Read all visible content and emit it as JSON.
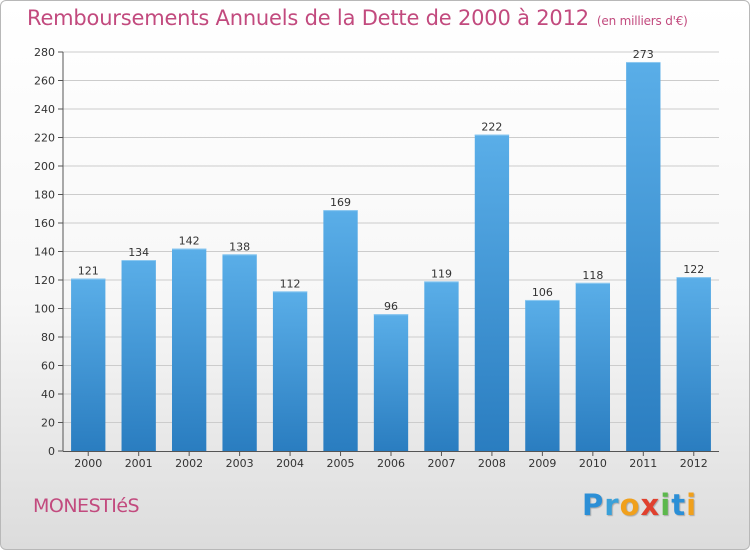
{
  "chart_data": {
    "type": "bar",
    "title": "Remboursements Annuels de la Dette de 2000 à 2012",
    "subtitle": "(en milliers d'€)",
    "categories": [
      "2000",
      "2001",
      "2002",
      "2003",
      "2004",
      "2005",
      "2006",
      "2007",
      "2008",
      "2009",
      "2010",
      "2011",
      "2012"
    ],
    "values": [
      121,
      134,
      142,
      138,
      112,
      169,
      96,
      119,
      222,
      106,
      118,
      273,
      122
    ],
    "ylim": [
      0,
      280
    ],
    "yticks": [
      0,
      20,
      40,
      60,
      80,
      100,
      120,
      140,
      160,
      180,
      200,
      220,
      240,
      260,
      280
    ],
    "grid": true,
    "colors": {
      "bar_top": "#5aaee8",
      "bar_bottom": "#2a7dc0",
      "title": "#c24a7e"
    }
  },
  "footer": {
    "place": "MONESTIéS",
    "logo": [
      {
        "ch": "P",
        "color": "#2c8fd6"
      },
      {
        "ch": "r",
        "color": "#3aa0d8"
      },
      {
        "ch": "o",
        "color": "#f0a01c"
      },
      {
        "ch": "x",
        "color": "#e0402e"
      },
      {
        "ch": "i",
        "color": "#5cb84c"
      },
      {
        "ch": "t",
        "color": "#2c8fd6"
      },
      {
        "ch": "i",
        "color": "#f0a01c"
      }
    ]
  }
}
